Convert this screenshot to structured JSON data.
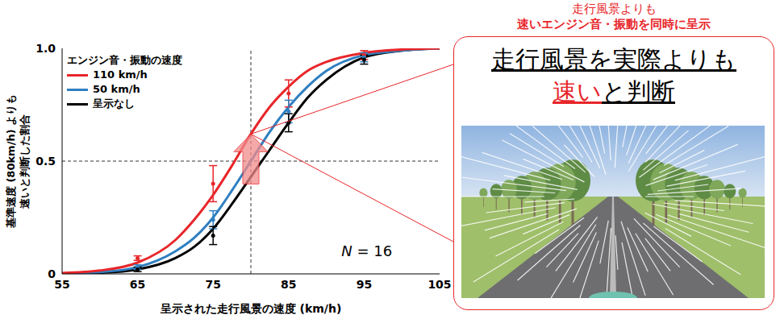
{
  "chart_data": {
    "type": "line",
    "x_label": "呈示された走行風景の速度 (km/h)",
    "y_label": [
      "基準速度 (80km/h) よりも",
      "速いと判断した割合"
    ],
    "legend_title": "エンジン音・振動の速度",
    "legend": "upper left",
    "annotation": "N = 16",
    "xlim": [
      55,
      105
    ],
    "xticks": [
      55,
      65,
      75,
      85,
      95,
      105
    ],
    "ylim": [
      0,
      1
    ],
    "yticks": [
      0,
      0.5,
      {
        "value": 1,
        "label": "1.0"
      }
    ],
    "grid": false,
    "reference_x": 80,
    "reference_y": 0.5,
    "x": [
      55,
      60,
      65,
      70,
      72.5,
      75,
      77.5,
      80,
      82.5,
      85,
      87.5,
      90,
      95,
      100,
      105
    ],
    "observed_x": [
      65,
      75,
      85,
      95
    ],
    "series": [
      {
        "name": "110 km/h",
        "color": "#e8262a",
        "values": [
          0.004,
          0.015,
          0.05,
          0.15,
          0.24,
          0.35,
          0.48,
          0.62,
          0.74,
          0.83,
          0.9,
          0.94,
          0.98,
          0.995,
          1.0
        ],
        "observed": [
          0.07,
          0.4,
          0.8,
          0.97
        ],
        "error": [
          0.01,
          0.08,
          0.06,
          0.02
        ]
      },
      {
        "name": "50 km/h",
        "color": "#2f7fc1",
        "values": [
          0.002,
          0.008,
          0.03,
          0.1,
          0.16,
          0.25,
          0.37,
          0.5,
          0.63,
          0.74,
          0.83,
          0.9,
          0.97,
          0.99,
          1.0
        ],
        "observed": [
          0.03,
          0.24,
          0.72,
          0.96
        ],
        "error": [
          0.01,
          0.04,
          0.05,
          0.02
        ]
      },
      {
        "name": "呈示なし",
        "color": "#000000",
        "values": [
          0.001,
          0.005,
          0.02,
          0.07,
          0.12,
          0.2,
          0.31,
          0.43,
          0.55,
          0.67,
          0.78,
          0.86,
          0.96,
          0.99,
          1.0
        ],
        "observed": [
          0.02,
          0.17,
          0.67,
          0.95
        ],
        "error": [
          0.01,
          0.04,
          0.04,
          0.02
        ]
      }
    ]
  },
  "callout": {
    "heading": [
      [
        {
          "text": "走行風景よりも",
          "color": "#e8262a"
        }
      ],
      [
        {
          "text": "速い",
          "color": "#e8262a"
        },
        {
          "text": "エンジン音・振動を同時に呈示",
          "color": "#e8262a"
        }
      ]
    ],
    "main": [
      [
        {
          "text": "走行風景を実際よりも",
          "color": "#000000"
        }
      ],
      [
        {
          "text": "速い",
          "color": "#e8262a"
        },
        {
          "text": "と判断",
          "color": "#000000"
        }
      ]
    ]
  }
}
